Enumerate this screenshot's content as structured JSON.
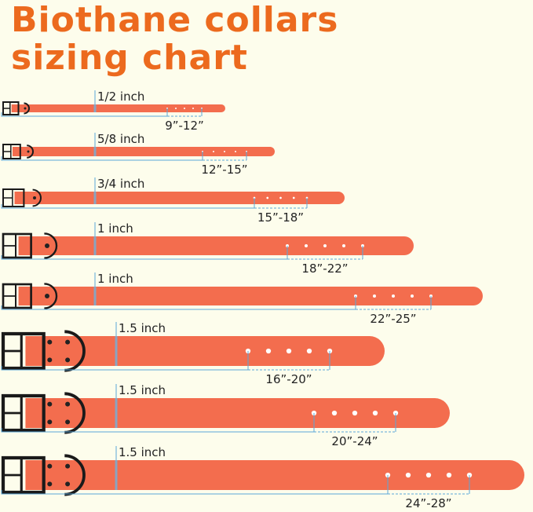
{
  "title": {
    "line1": "Biothane collars",
    "line2": "sizing chart"
  },
  "colors": {
    "title": "#ec6a1e",
    "strap": "#f36d4e",
    "hardware": "#1a1a1a",
    "measure": "#5aa8d8",
    "background": "#fdfdec"
  },
  "collars": [
    {
      "width": "1/2 inch",
      "size": "9”-12”"
    },
    {
      "width": "5/8 inch",
      "size": "12”-15”"
    },
    {
      "width": "3/4 inch",
      "size": "15”-18”"
    },
    {
      "width": "1 inch",
      "size": "18”-22”"
    },
    {
      "width": "1 inch",
      "size": "22”-25”"
    },
    {
      "width": "1.5 inch",
      "size": "16”-20”"
    },
    {
      "width": "1.5 inch",
      "size": "20”-24”"
    },
    {
      "width": "1.5 inch",
      "size": "24”-28”"
    }
  ]
}
